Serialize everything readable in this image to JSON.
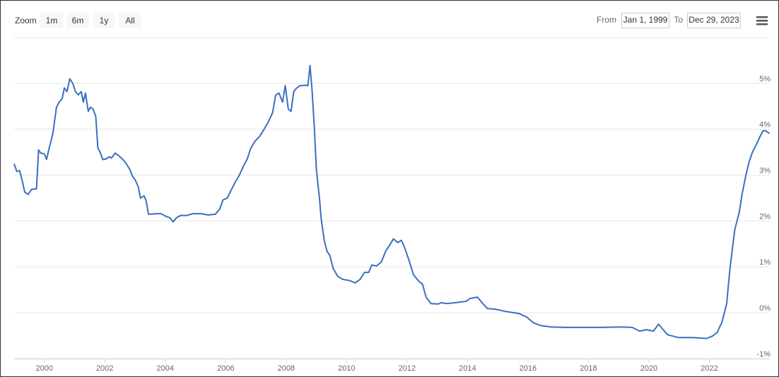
{
  "controls": {
    "zoom_label": "Zoom",
    "zoom_buttons": [
      "1m",
      "6m",
      "1y",
      "All"
    ],
    "from_label": "From",
    "from_value": "Jan 1, 1999",
    "to_label": "To",
    "to_value": "Dec 29, 2023"
  },
  "chart_data": {
    "type": "line",
    "color": "#3a6fc0",
    "grid": true,
    "xlim": [
      1999,
      2024
    ],
    "xticks": [
      2000,
      2002,
      2004,
      2006,
      2008,
      2010,
      2012,
      2014,
      2016,
      2018,
      2020,
      2022
    ],
    "ylim": [
      -1,
      6
    ],
    "yticks": [
      {
        "value": -1,
        "label": "-1%"
      },
      {
        "value": 0,
        "label": "0%"
      },
      {
        "value": 1,
        "label": "1%"
      },
      {
        "value": 2,
        "label": "2%"
      },
      {
        "value": 3,
        "label": "3%"
      },
      {
        "value": 4,
        "label": "4%"
      },
      {
        "value": 5,
        "label": "5%"
      }
    ],
    "x": [
      1999.0,
      1999.09,
      1999.18,
      1999.28,
      1999.35,
      1999.46,
      1999.58,
      1999.74,
      1999.81,
      1999.88,
      2000.0,
      2000.07,
      2000.16,
      2000.28,
      2000.4,
      2000.49,
      2000.59,
      2000.66,
      2000.75,
      2000.84,
      2000.94,
      2001.03,
      2001.12,
      2001.22,
      2001.29,
      2001.36,
      2001.45,
      2001.52,
      2001.61,
      2001.7,
      2001.77,
      2001.84,
      2001.93,
      2002.03,
      2002.15,
      2002.22,
      2002.34,
      2002.45,
      2002.6,
      2002.71,
      2002.83,
      2002.92,
      2003.01,
      2003.11,
      2003.18,
      2003.3,
      2003.37,
      2003.44,
      2003.55,
      2003.67,
      2003.86,
      2004.02,
      2004.16,
      2004.26,
      2004.37,
      2004.51,
      2004.72,
      2004.91,
      2005.19,
      2005.42,
      2005.66,
      2005.8,
      2005.91,
      2006.05,
      2006.17,
      2006.31,
      2006.45,
      2006.59,
      2006.71,
      2006.83,
      2006.97,
      2007.13,
      2007.27,
      2007.41,
      2007.55,
      2007.65,
      2007.76,
      2007.88,
      2007.97,
      2008.07,
      2008.16,
      2008.25,
      2008.35,
      2008.46,
      2008.65,
      2008.72,
      2008.79,
      2008.86,
      2008.93,
      2009.0,
      2009.1,
      2009.16,
      2009.26,
      2009.35,
      2009.45,
      2009.56,
      2009.7,
      2009.86,
      2010.1,
      2010.28,
      2010.45,
      2010.59,
      2010.73,
      2010.83,
      2010.99,
      2011.15,
      2011.29,
      2011.43,
      2011.55,
      2011.69,
      2011.81,
      2011.9,
      2012.04,
      2012.21,
      2012.37,
      2012.51,
      2012.63,
      2012.79,
      2013.03,
      2013.14,
      2013.3,
      2013.61,
      2013.96,
      2014.08,
      2014.33,
      2014.48,
      2014.66,
      2014.9,
      2015.25,
      2015.71,
      2015.95,
      2016.18,
      2016.42,
      2016.76,
      2017.23,
      2018.4,
      2019.1,
      2019.45,
      2019.69,
      2019.92,
      2020.15,
      2020.32,
      2020.46,
      2020.62,
      2020.97,
      2021.44,
      2021.91,
      2022.1,
      2022.26,
      2022.42,
      2022.57,
      2022.68,
      2022.84,
      2022.99,
      2023.08,
      2023.2,
      2023.31,
      2023.43,
      2023.55,
      2023.66,
      2023.78,
      2023.85,
      2023.99
    ],
    "values": [
      3.25,
      3.08,
      3.1,
      2.84,
      2.63,
      2.58,
      2.69,
      2.7,
      3.55,
      3.48,
      3.46,
      3.34,
      3.59,
      3.9,
      4.48,
      4.59,
      4.67,
      4.9,
      4.82,
      5.1,
      5.0,
      4.82,
      4.75,
      4.82,
      4.59,
      4.79,
      4.39,
      4.48,
      4.44,
      4.28,
      3.59,
      3.51,
      3.34,
      3.35,
      3.4,
      3.37,
      3.48,
      3.43,
      3.34,
      3.25,
      3.12,
      2.97,
      2.89,
      2.74,
      2.5,
      2.55,
      2.43,
      2.15,
      2.15,
      2.16,
      2.16,
      2.1,
      2.07,
      1.98,
      2.07,
      2.12,
      2.12,
      2.16,
      2.16,
      2.13,
      2.15,
      2.26,
      2.46,
      2.5,
      2.66,
      2.84,
      3.0,
      3.2,
      3.35,
      3.59,
      3.74,
      3.85,
      4.0,
      4.16,
      4.36,
      4.74,
      4.79,
      4.59,
      4.95,
      4.44,
      4.39,
      4.82,
      4.9,
      4.95,
      4.96,
      4.95,
      5.39,
      4.82,
      4.05,
      3.12,
      2.5,
      2.04,
      1.58,
      1.34,
      1.24,
      0.96,
      0.8,
      0.73,
      0.7,
      0.65,
      0.73,
      0.88,
      0.88,
      1.04,
      1.02,
      1.11,
      1.34,
      1.48,
      1.61,
      1.53,
      1.58,
      1.45,
      1.19,
      0.83,
      0.7,
      0.62,
      0.34,
      0.2,
      0.19,
      0.22,
      0.2,
      0.22,
      0.25,
      0.31,
      0.34,
      0.22,
      0.09,
      0.08,
      0.03,
      -0.02,
      -0.09,
      -0.22,
      -0.28,
      -0.31,
      -0.32,
      -0.32,
      -0.31,
      -0.32,
      -0.4,
      -0.37,
      -0.4,
      -0.25,
      -0.36,
      -0.48,
      -0.54,
      -0.54,
      -0.56,
      -0.51,
      -0.43,
      -0.2,
      0.19,
      0.96,
      1.81,
      2.19,
      2.58,
      2.97,
      3.28,
      3.51,
      3.66,
      3.82,
      3.97,
      3.97,
      3.91
    ]
  }
}
